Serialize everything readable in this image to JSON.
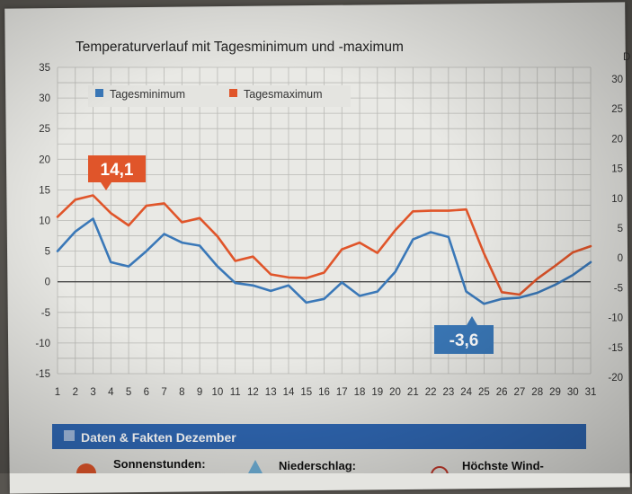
{
  "chart_data": {
    "type": "line",
    "title": "Temperaturverlauf mit Tagesminimum und -maximum",
    "x": [
      1,
      2,
      3,
      4,
      5,
      6,
      7,
      8,
      9,
      10,
      11,
      12,
      13,
      14,
      15,
      16,
      17,
      18,
      19,
      20,
      21,
      22,
      23,
      24,
      25,
      26,
      27,
      28,
      29,
      30,
      31
    ],
    "ylim": [
      -15,
      35
    ],
    "yticks": [
      -15,
      -10,
      -5,
      0,
      5,
      10,
      15,
      20,
      25,
      30,
      35
    ],
    "right_yticks": [
      -20,
      -15,
      -10,
      -5,
      0,
      5,
      10,
      15,
      20,
      25,
      30
    ],
    "grid": true,
    "legend_placement": "top-left",
    "series": [
      {
        "name": "Tagesminimum",
        "color": "#3a78b8",
        "values": [
          5,
          8.2,
          10.3,
          3.2,
          2.5,
          5,
          7.8,
          6.4,
          5.9,
          2.5,
          -0.2,
          -0.6,
          -1.5,
          -0.6,
          -3.4,
          -2.8,
          -0.1,
          -2.3,
          -1.6,
          1.6,
          6.9,
          8.1,
          7.3,
          -1.6,
          -3.6,
          -2.8,
          -2.6,
          -1.8,
          -0.5,
          1.1,
          3.2
        ]
      },
      {
        "name": "Tagesmaximum",
        "color": "#e0552a",
        "values": [
          10.6,
          13.4,
          14.1,
          11.2,
          9.2,
          12.4,
          12.8,
          9.7,
          10.4,
          7.4,
          3.4,
          4.1,
          1.2,
          0.7,
          0.6,
          1.5,
          5.3,
          6.4,
          4.7,
          8.4,
          11.5,
          11.6,
          11.6,
          11.8,
          4.6,
          -1.7,
          -2.1,
          0.5,
          2.6,
          4.8,
          5.8
        ]
      }
    ],
    "annotations": [
      {
        "text": "14,1",
        "x": 3,
        "y": 14.1,
        "color": "#e0552a"
      },
      {
        "text": "-3,6",
        "x": 25,
        "y": -3.6,
        "color": "#3a78b8"
      }
    ]
  },
  "section": {
    "title": "Daten & Fakten Dezember",
    "items": [
      "Sonnenstunden:",
      "Niederschlag:",
      "Höchste Wind-"
    ]
  },
  "right_edge_label": "D"
}
